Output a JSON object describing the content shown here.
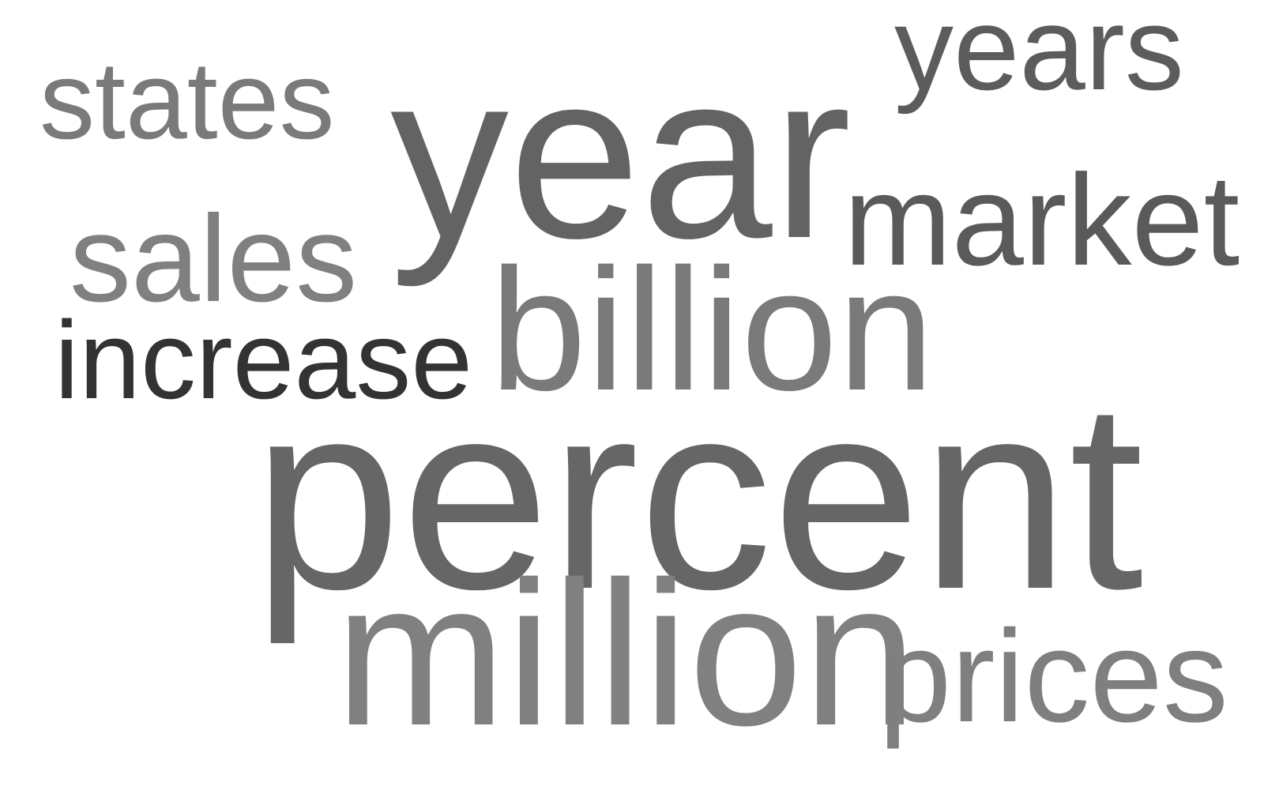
{
  "word_cloud": {
    "words": [
      {
        "text": "years",
        "color": "#5c5c5c"
      },
      {
        "text": "states",
        "color": "#7a7a7a"
      },
      {
        "text": "year",
        "color": "#636363"
      },
      {
        "text": "market",
        "color": "#5a5a5a"
      },
      {
        "text": "sales",
        "color": "#808080"
      },
      {
        "text": "billion",
        "color": "#7a7a7a"
      },
      {
        "text": "increase",
        "color": "#333333"
      },
      {
        "text": "percent",
        "color": "#666666"
      },
      {
        "text": "million",
        "color": "#808080"
      },
      {
        "text": "prices",
        "color": "#7f7f7f"
      }
    ]
  }
}
